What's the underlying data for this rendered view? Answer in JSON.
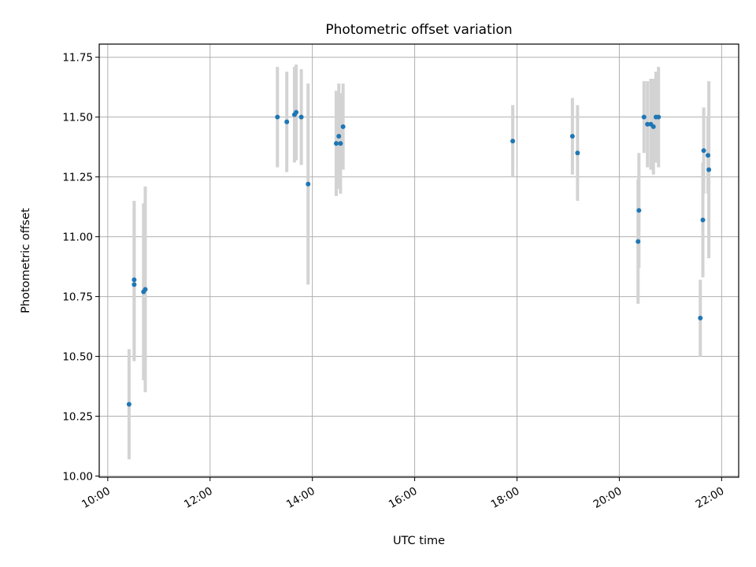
{
  "chart_data": {
    "type": "scatter",
    "title": "Photometric offset variation",
    "xlabel": "UTC time",
    "ylabel": "Photometric offset",
    "x_unit": "hour of day (UTC)",
    "xlim": [
      "09:50",
      "22:20"
    ],
    "ylim": [
      9.995,
      11.805
    ],
    "x_ticks": [
      {
        "label": "10:00",
        "value": "10:00"
      },
      {
        "label": "12:00",
        "value": "12:00"
      },
      {
        "label": "14:00",
        "value": "14:00"
      },
      {
        "label": "16:00",
        "value": "16:00"
      },
      {
        "label": "18:00",
        "value": "18:00"
      },
      {
        "label": "20:00",
        "value": "20:00"
      },
      {
        "label": "22:00",
        "value": "22:00"
      }
    ],
    "y_ticks": [
      {
        "label": "10.00",
        "value": 10.0
      },
      {
        "label": "10.25",
        "value": 10.25
      },
      {
        "label": "10.50",
        "value": 10.5
      },
      {
        "label": "10.75",
        "value": 10.75
      },
      {
        "label": "11.00",
        "value": 11.0
      },
      {
        "label": "11.25",
        "value": 11.25
      },
      {
        "label": "11.50",
        "value": 11.5
      },
      {
        "label": "11.75",
        "value": 11.75
      }
    ],
    "grid": true,
    "legend": "none",
    "marker_color": "#1f77b4",
    "errorbar_color": "#d3d3d3",
    "points": [
      {
        "x": "10:25",
        "y": 10.3,
        "err": 0.23
      },
      {
        "x": "10:31",
        "y": 10.82,
        "err": 0.33
      },
      {
        "x": "10:31",
        "y": 10.8,
        "err": 0.32
      },
      {
        "x": "10:42",
        "y": 10.77,
        "err": 0.37
      },
      {
        "x": "10:44",
        "y": 10.78,
        "err": 0.43
      },
      {
        "x": "13:19",
        "y": 11.5,
        "err": 0.21
      },
      {
        "x": "13:30",
        "y": 11.48,
        "err": 0.21
      },
      {
        "x": "13:39",
        "y": 11.51,
        "err": 0.2
      },
      {
        "x": "13:41",
        "y": 11.52,
        "err": 0.2
      },
      {
        "x": "13:47",
        "y": 11.5,
        "err": 0.2
      },
      {
        "x": "13:55",
        "y": 11.22,
        "err": 0.42
      },
      {
        "x": "14:28",
        "y": 11.39,
        "err": 0.22
      },
      {
        "x": "14:31",
        "y": 11.42,
        "err": 0.22
      },
      {
        "x": "14:33",
        "y": 11.39,
        "err": 0.21
      },
      {
        "x": "14:36",
        "y": 11.46,
        "err": 0.18
      },
      {
        "x": "17:55",
        "y": 11.4,
        "err": 0.15
      },
      {
        "x": "19:05",
        "y": 11.42,
        "err": 0.16
      },
      {
        "x": "19:11",
        "y": 11.35,
        "err": 0.2
      },
      {
        "x": "20:22",
        "y": 10.98,
        "err": 0.26
      },
      {
        "x": "20:23",
        "y": 11.11,
        "err": 0.24
      },
      {
        "x": "20:29",
        "y": 11.5,
        "err": 0.15
      },
      {
        "x": "20:33",
        "y": 11.47,
        "err": 0.18
      },
      {
        "x": "20:37",
        "y": 11.47,
        "err": 0.19
      },
      {
        "x": "20:40",
        "y": 11.46,
        "err": 0.2
      },
      {
        "x": "20:43",
        "y": 11.5,
        "err": 0.19
      },
      {
        "x": "20:46",
        "y": 11.5,
        "err": 0.21
      },
      {
        "x": "21:35",
        "y": 10.66,
        "err": 0.16
      },
      {
        "x": "21:38",
        "y": 11.07,
        "err": 0.24
      },
      {
        "x": "21:39",
        "y": 11.36,
        "err": 0.18
      },
      {
        "x": "21:44",
        "y": 11.34,
        "err": 0.16
      },
      {
        "x": "21:45",
        "y": 11.28,
        "err": 0.37
      }
    ]
  }
}
